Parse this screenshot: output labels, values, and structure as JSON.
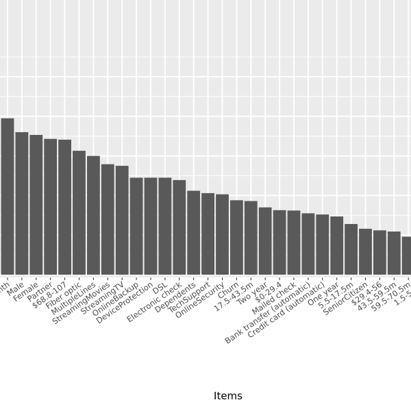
{
  "chart_data": {
    "type": "bar",
    "xlabel": "Items",
    "ylabel": "",
    "ylim": [
      0,
      0.58
    ],
    "y_gridlines": [
      0,
      0.1,
      0.2,
      0.3,
      0.4,
      0.5
    ],
    "grid": true,
    "categories": [
      "Month-to-month",
      "Male",
      "Female",
      "Partner",
      "$68.8-107",
      "Fiber optic",
      "MultipleLines",
      "StreamingMovies",
      "StreamingTV",
      "OnlineBackup",
      "DeviceProtection",
      "DSL",
      "Electronic check",
      "Dependents",
      "TechSupport",
      "OnlineSecurity",
      "Churn",
      "17.5-43.5m",
      "Two year",
      "$0-29.4",
      "Mailed check",
      "Bank transfer (automatic)",
      "Credit card (automatic)",
      "One year",
      "5.5-17.5m",
      "SeniorCitizen",
      "$29.4-56",
      "43.5-59.5m",
      "59.5-70.5m",
      "1.5-5.5m"
    ],
    "tick_labels": [
      "nth",
      "Male",
      "Female",
      "Partner",
      "$68.8-107",
      "Fiber optic",
      "MultipleLines",
      "StreamingMovies",
      "StreamingTV",
      "OnlineBackup",
      "DeviceProtection",
      "DSL",
      "Electronic check",
      "Dependents",
      "TechSupport",
      "OnlineSecurity",
      "Churn",
      "17.5-43.5m",
      "Two year",
      "$0-29.4",
      "Mailed check",
      "Bank transfer (automatic)",
      "Credit card (automatic)",
      "One year",
      "5.5-17.5m",
      "SeniorCitizen",
      "$29.4-56",
      "43.5-59.5m",
      "59.5-70.5m",
      "1.5-5.5m"
    ],
    "values": [
      0.395,
      0.36,
      0.353,
      0.343,
      0.341,
      0.313,
      0.3,
      0.279,
      0.275,
      0.245,
      0.245,
      0.245,
      0.239,
      0.212,
      0.206,
      0.203,
      0.188,
      0.186,
      0.17,
      0.163,
      0.162,
      0.155,
      0.152,
      0.147,
      0.128,
      0.116,
      0.112,
      0.109,
      0.096,
      0.092
    ],
    "bar_color": "#595959",
    "panel_color": "#ebebeb",
    "grid_color": "#ffffff"
  }
}
